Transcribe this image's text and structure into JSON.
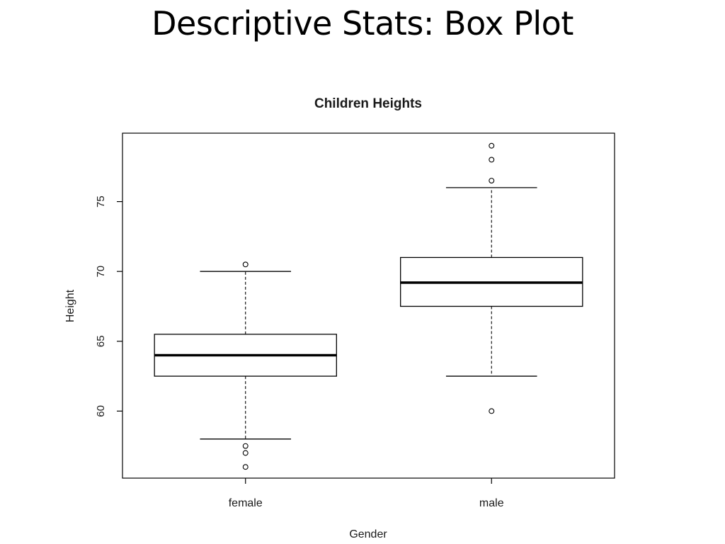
{
  "slide": {
    "title": "Descriptive Stats:  Box Plot"
  },
  "chart_data": {
    "type": "boxplot",
    "title": "Children Heights",
    "xlabel": "Gender",
    "ylabel": "Height",
    "ylim": [
      55.2,
      79.9
    ],
    "yticks": [
      60,
      65,
      70,
      75
    ],
    "ytick_labels": [
      "60",
      "65",
      "70",
      "75"
    ],
    "categories": [
      "female",
      "male"
    ],
    "grid": false,
    "legend": "none",
    "boxes": [
      {
        "category": "female",
        "whisker_low": 58,
        "q1": 62.5,
        "median": 64,
        "q3": 65.5,
        "whisker_high": 70,
        "outliers": [
          70.5,
          57.5,
          57,
          56
        ]
      },
      {
        "category": "male",
        "whisker_low": 62.5,
        "q1": 67.5,
        "median": 69.2,
        "q3": 71,
        "whisker_high": 76,
        "outliers": [
          79,
          78,
          76.5,
          60
        ]
      }
    ]
  }
}
